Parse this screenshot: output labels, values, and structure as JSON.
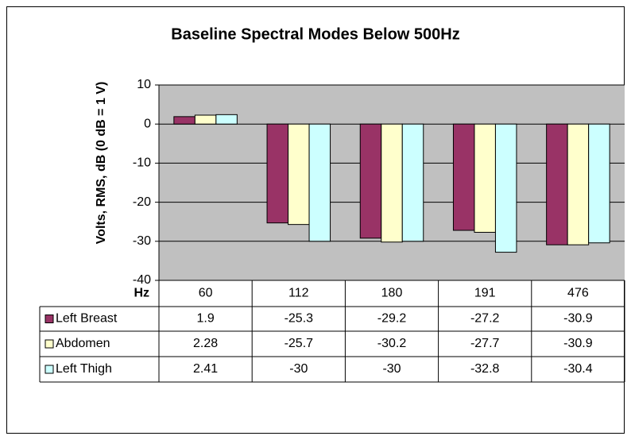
{
  "chart_data": {
    "type": "bar",
    "title": "Baseline Spectral Modes Below 500Hz",
    "y_label": "Volts, RMS, dB (0 dB = 1 V)",
    "table_header": "Hz",
    "categories": [
      "60",
      "112",
      "180",
      "191",
      "476"
    ],
    "series": [
      {
        "name": "Left Breast",
        "color": "#993366",
        "values": [
          1.9,
          -25.3,
          -29.2,
          -27.2,
          -30.9
        ]
      },
      {
        "name": "Abdomen",
        "color": "#ffffcc",
        "values": [
          2.28,
          -25.7,
          -30.2,
          -27.7,
          -30.9
        ]
      },
      {
        "name": "Left Thigh",
        "color": "#ccffff",
        "values": [
          2.41,
          -30,
          -30,
          -32.8,
          -30.4
        ]
      }
    ],
    "ylim": [
      -40,
      10
    ],
    "yticks": [
      -40,
      -30,
      -20,
      -10,
      0,
      10
    ],
    "grid": true,
    "plot_background": "#c0c0c0"
  }
}
